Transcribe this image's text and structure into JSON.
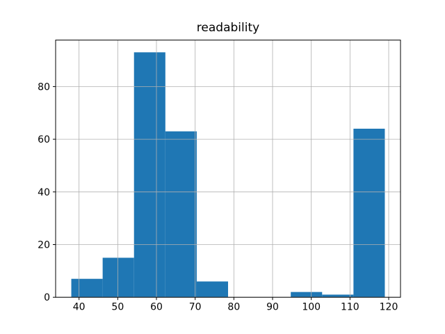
{
  "figure": {
    "background": "#ffffff"
  },
  "chart_data": {
    "type": "bar",
    "subtype": "histogram",
    "title": "readability",
    "xlabel": "",
    "ylabel": "",
    "bin_edges": [
      38.0,
      46.1,
      54.2,
      62.3,
      70.4,
      78.5,
      86.6,
      94.7,
      102.8,
      110.9,
      119.0
    ],
    "counts": [
      7,
      15,
      93,
      63,
      6,
      0,
      0,
      2,
      1,
      64
    ],
    "xticks": [
      40,
      50,
      60,
      70,
      80,
      90,
      100,
      110,
      120
    ],
    "yticks": [
      0,
      20,
      40,
      60,
      80
    ],
    "xlim": [
      33.95,
      123.05
    ],
    "ylim": [
      0,
      97.65
    ],
    "grid": true,
    "grid_above_bars": true,
    "legend": false,
    "bar_color": "#1f77b4",
    "grid_color": "#b0b0b0",
    "spine_color": "#000000",
    "tick_color": "#000000",
    "tick_label_color": "#000000"
  }
}
